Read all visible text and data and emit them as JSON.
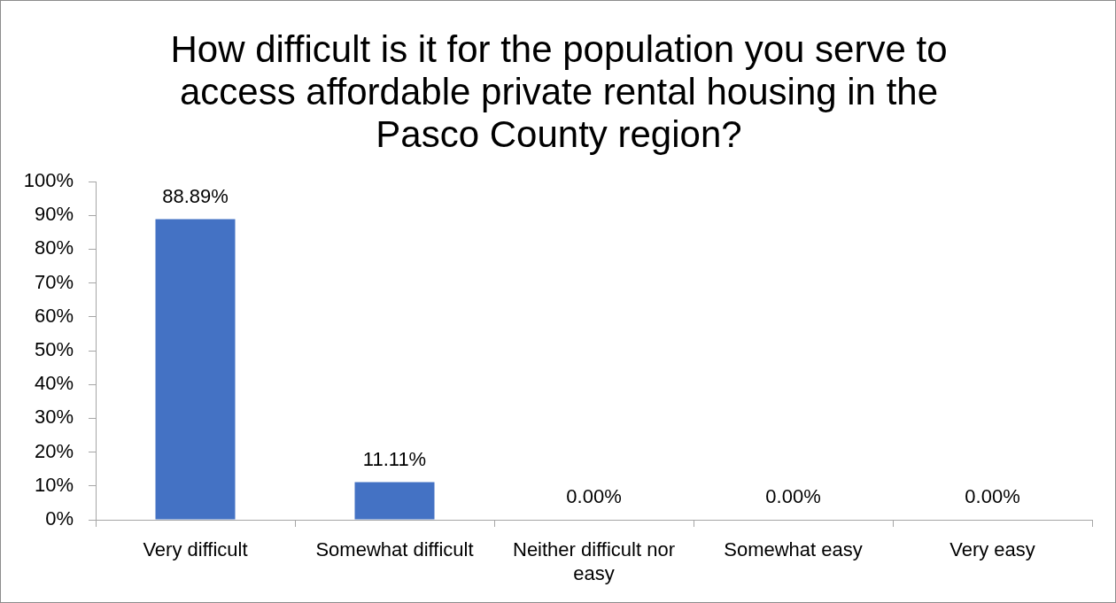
{
  "chart_data": {
    "type": "bar",
    "title": "How difficult is it for the population you serve to access affordable private rental housing in the Pasco County region?",
    "categories": [
      "Very difficult",
      "Somewhat difficult",
      "Neither difficult nor easy",
      "Somewhat easy",
      "Very easy"
    ],
    "values": [
      88.89,
      11.11,
      0,
      0,
      0
    ],
    "color": "#4472c4",
    "value_labels": [
      "88.89%",
      "11.11%",
      "0.00%",
      "0.00%",
      "0.00%"
    ],
    "ylim": [
      0,
      100
    ],
    "yticks": [
      {
        "value": 0,
        "label": "0%"
      },
      {
        "value": 10,
        "label": "10%"
      },
      {
        "value": 20,
        "label": "20%"
      },
      {
        "value": 30,
        "label": "30%"
      },
      {
        "value": 40,
        "label": "40%"
      },
      {
        "value": 50,
        "label": "50%"
      },
      {
        "value": 60,
        "label": "60%"
      },
      {
        "value": 70,
        "label": "70%"
      },
      {
        "value": 80,
        "label": "80%"
      },
      {
        "value": 90,
        "label": "90%"
      },
      {
        "value": 100,
        "label": "100%"
      }
    ]
  }
}
